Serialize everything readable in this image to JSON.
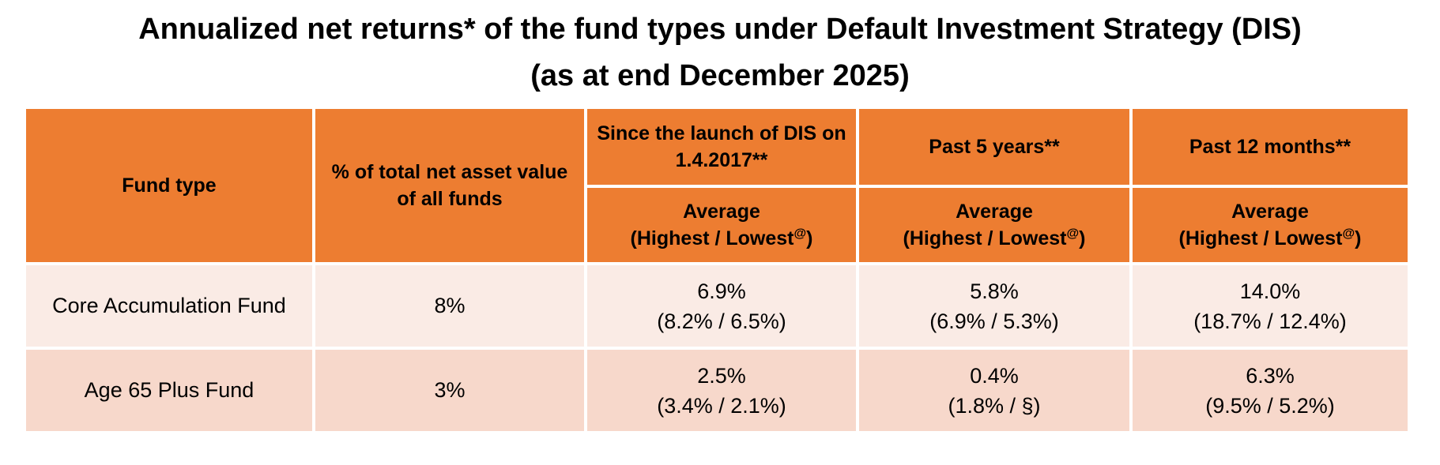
{
  "title": {
    "line1": "Annualized net returns* of the fund types under Default Investment Strategy (DIS)",
    "line2": "(as at end December 2025)"
  },
  "table": {
    "header": {
      "fund_type": "Fund type",
      "nav": {
        "line1": "% of total net asset value",
        "line2": "of all funds"
      },
      "periods": [
        {
          "line1": "Since the launch of DIS on",
          "line2": "1.4.2017**"
        },
        {
          "line1": "Past 5 years**",
          "line2": ""
        },
        {
          "line1": "Past 12 months**",
          "line2": ""
        }
      ],
      "subheader": {
        "line1": "Average",
        "line2_open": "(Highest / Lowest",
        "superscript": "@",
        "line2_close": ")"
      }
    },
    "rows": [
      {
        "fund": "Core Accumulation Fund",
        "nav": "8%",
        "cells": [
          {
            "avg": "6.9%",
            "range": "(8.2% / 6.5%)"
          },
          {
            "avg": "5.8%",
            "range": "(6.9% / 5.3%)"
          },
          {
            "avg": "14.0%",
            "range": "(18.7% / 12.4%)"
          }
        ]
      },
      {
        "fund": "Age 65 Plus Fund",
        "nav": "3%",
        "cells": [
          {
            "avg": "2.5%",
            "range": "(3.4% / 2.1%)"
          },
          {
            "avg": "0.4%",
            "range": "(1.8% / §)"
          },
          {
            "avg": "6.3%",
            "range": "(9.5% / 5.2%)"
          }
        ]
      }
    ]
  },
  "colors": {
    "header_orange": "#ED7D31",
    "row_light": "#FAEBE5",
    "row_medium": "#F7D8CB",
    "text": "#000000",
    "background": "#FFFFFF"
  }
}
